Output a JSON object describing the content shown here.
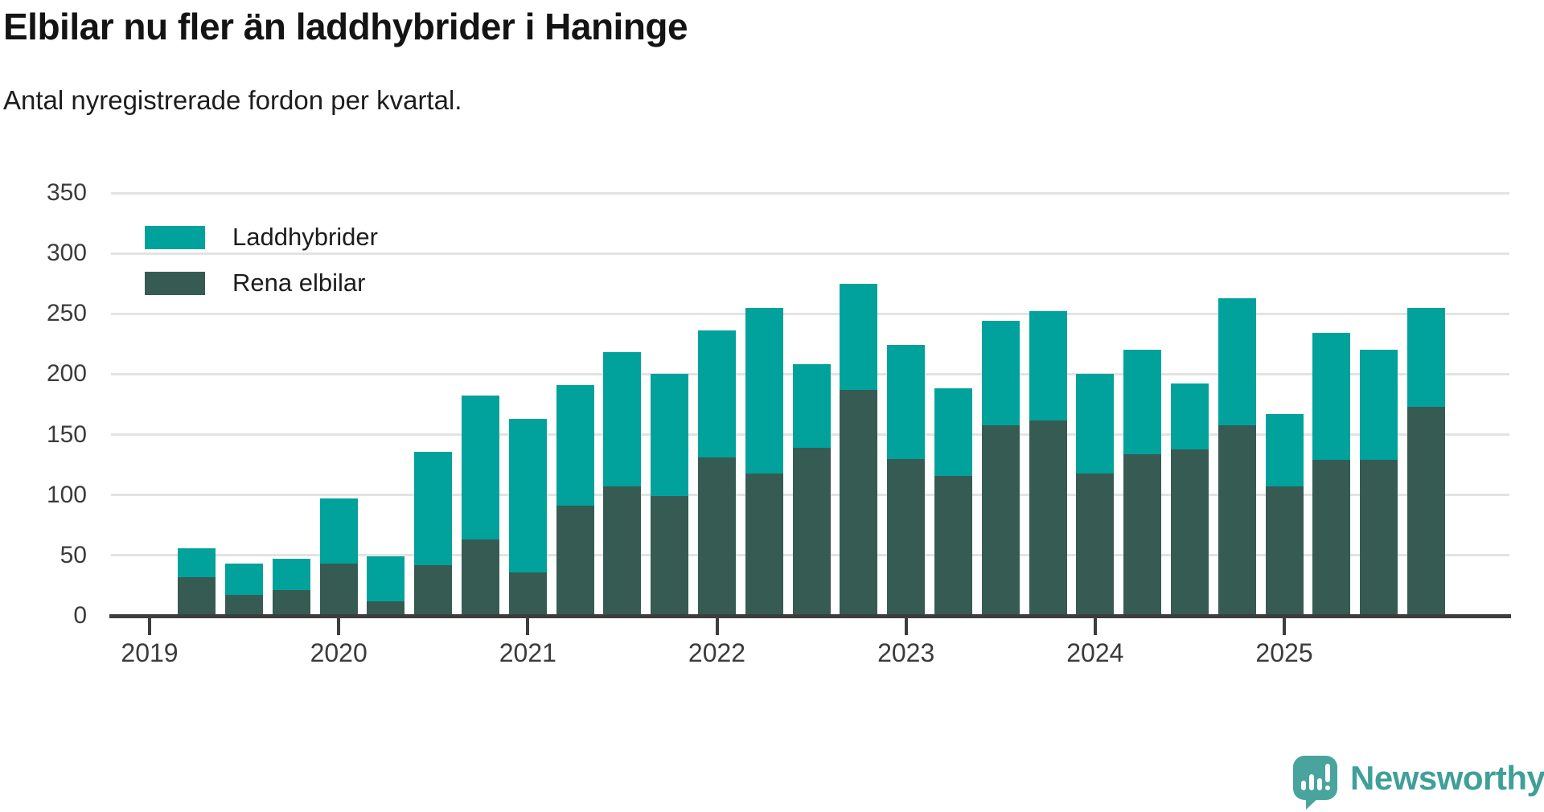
{
  "header": {
    "title": "Elbilar nu fler än laddhybrider i Haninge",
    "subtitle": "Antal nyregistrerade fordon per kvartal."
  },
  "legend": {
    "items": [
      {
        "label": "Laddhybrider",
        "color": "#00a29b"
      },
      {
        "label": "Rena elbilar",
        "color": "#365b53"
      }
    ]
  },
  "chart_data": {
    "type": "bar",
    "stacked": true,
    "title": "Elbilar nu fler än laddhybrider i Haninge",
    "subtitle": "Antal nyregistrerade fordon per kvartal.",
    "categories": [
      "2019 Q2",
      "2019 Q3",
      "2019 Q4",
      "2020 Q1",
      "2020 Q2",
      "2020 Q3",
      "2020 Q4",
      "2021 Q1",
      "2021 Q2",
      "2021 Q3",
      "2021 Q4",
      "2022 Q1",
      "2022 Q2",
      "2022 Q3",
      "2022 Q4",
      "2023 Q1",
      "2023 Q2",
      "2023 Q3",
      "2023 Q4",
      "2024 Q1",
      "2024 Q2",
      "2024 Q3",
      "2024 Q4",
      "2025 Q1",
      "2025 Q2",
      "2025 Q3",
      "2025 Q4"
    ],
    "series": [
      {
        "name": "Laddhybrider",
        "color": "#00a29b",
        "values": [
          24,
          26,
          26,
          54,
          37,
          94,
          119,
          127,
          100,
          111,
          101,
          105,
          137,
          69,
          88,
          94,
          72,
          86,
          90,
          82,
          86,
          54,
          105,
          60,
          105,
          91,
          82
        ]
      },
      {
        "name": "Rena elbilar",
        "color": "#365b53",
        "values": [
          32,
          17,
          21,
          43,
          12,
          42,
          63,
          36,
          91,
          107,
          99,
          131,
          118,
          139,
          187,
          130,
          116,
          158,
          162,
          118,
          134,
          138,
          158,
          107,
          129,
          129,
          173
        ]
      }
    ],
    "xlabel": "",
    "ylabel": "",
    "ylim": [
      0,
      350
    ],
    "yticks": [
      0,
      50,
      100,
      150,
      200,
      250,
      300,
      350
    ],
    "xtick_labels": [
      "2019",
      "2020",
      "2021",
      "2022",
      "2023",
      "2024",
      "2025"
    ],
    "grid": true,
    "legend_position": "upper-left"
  },
  "footer": {
    "brand": "Newsworthy"
  }
}
